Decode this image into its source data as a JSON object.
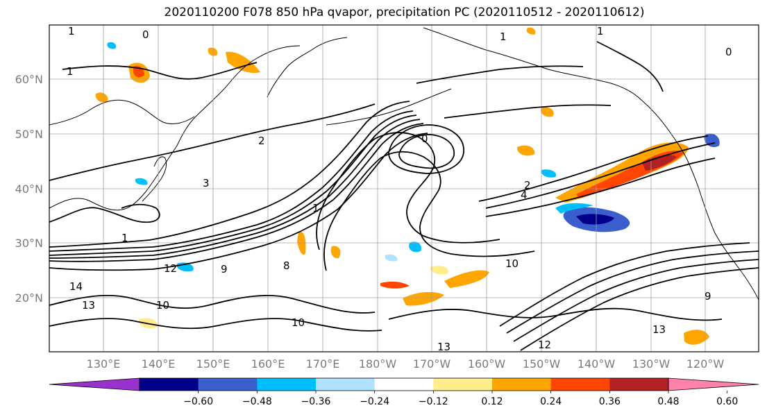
{
  "title": "2020110200 F078 850 hPa qvapor, precipitation PC (2020110512 - 2020110612)",
  "lat_ticks": [
    "60°N",
    "50°N",
    "40°N",
    "30°N",
    "20°N"
  ],
  "lon_ticks": [
    "130°E",
    "140°E",
    "150°E",
    "160°E",
    "170°E",
    "180°W",
    "170°W",
    "160°W",
    "150°W",
    "140°W",
    "130°W",
    "120°W"
  ],
  "colorbar": {
    "colors": [
      "#9932cc",
      "#00008b",
      "#3a5fcd",
      "#00bfff",
      "#b0e2ff",
      "#ffffff",
      "#ffec8b",
      "#ffa500",
      "#ff4500",
      "#b22222",
      "#ff82ab"
    ],
    "tick_labels": [
      "−0.60",
      "−0.48",
      "−0.36",
      "−0.24",
      "−0.12",
      "0.12",
      "0.24",
      "0.36",
      "0.48",
      "0.60"
    ]
  },
  "contour_labels": [
    "1",
    "1",
    "0",
    "1",
    "2",
    "3",
    "0",
    "2",
    "4",
    "1",
    "10",
    "12",
    "14",
    "13",
    "10",
    "9",
    "13",
    "10",
    "13",
    "9",
    "12",
    "8",
    "1",
    "0",
    "1"
  ]
}
